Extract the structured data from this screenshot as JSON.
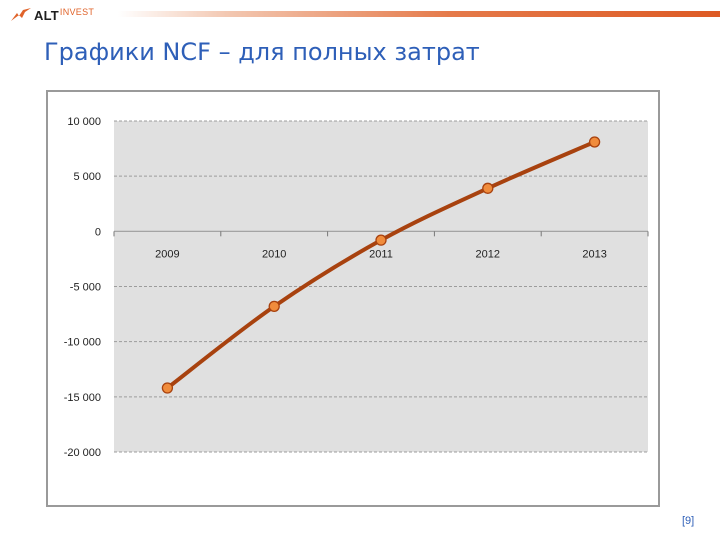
{
  "brand": {
    "alt": "ALT",
    "invest": "INVEST",
    "accent_color": "#e0632a"
  },
  "slide": {
    "title": "Графики NCF – для полных затрат",
    "page_label": "[9]",
    "title_color": "#2e5fb8"
  },
  "chart_data": {
    "type": "line",
    "title": "",
    "xlabel": "",
    "ylabel": "",
    "categories": [
      "2009",
      "2010",
      "2011",
      "2012",
      "2013"
    ],
    "series": [
      {
        "values": [
          -14200,
          -6800,
          -800,
          3900,
          8100
        ]
      }
    ],
    "ylim": [
      -20000,
      10000
    ],
    "y_ticks": [
      10000,
      5000,
      0,
      -5000,
      -10000,
      -15000,
      -20000
    ],
    "y_tick_labels": [
      "10 000",
      "5 000",
      "0",
      "-5 000",
      "-10 000",
      "-15 000",
      "-20 000"
    ],
    "grid": true,
    "legend": "none",
    "colors": {
      "line": "#a8420f",
      "marker_fill": "#f08c3c",
      "plot_bg": "#e0e0e0",
      "grid": "#9c9c9c"
    }
  }
}
